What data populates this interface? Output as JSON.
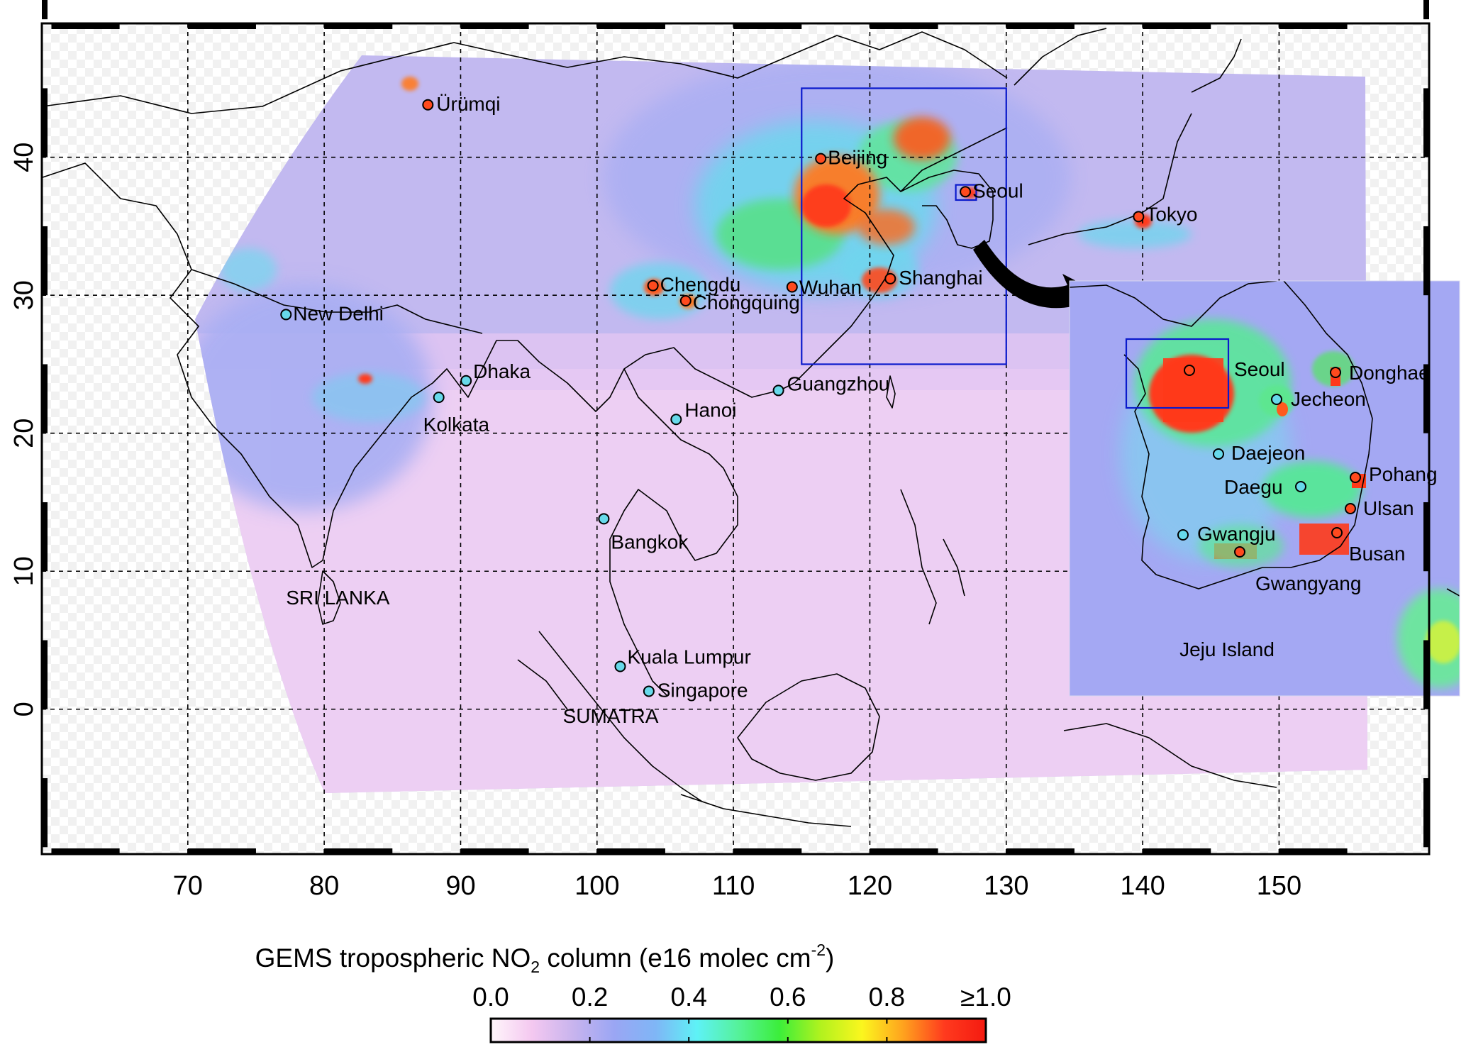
{
  "axes": {
    "x_ticks": [
      "70",
      "80",
      "90",
      "100",
      "110",
      "120",
      "130",
      "140",
      "150"
    ],
    "x_values": [
      70,
      80,
      90,
      100,
      110,
      120,
      130,
      140,
      150
    ],
    "y_ticks": [
      "0",
      "10",
      "20",
      "30",
      "40"
    ],
    "y_values": [
      0,
      10,
      20,
      30,
      40
    ],
    "lon_range": [
      59.3,
      161.0
    ],
    "lat_range": [
      -10.5,
      49.7
    ],
    "grid": "dashed"
  },
  "cities": [
    {
      "name": "Ürümqi",
      "lon": 87.6,
      "lat": 43.8,
      "level": "high"
    },
    {
      "name": "Beijing",
      "lon": 116.4,
      "lat": 39.9,
      "level": "high"
    },
    {
      "name": "Seoul",
      "lon": 127.0,
      "lat": 37.5,
      "level": "high"
    },
    {
      "name": "Tokyo",
      "lon": 139.7,
      "lat": 35.7,
      "level": "high"
    },
    {
      "name": "Shanghai",
      "lon": 121.5,
      "lat": 31.2,
      "level": "high"
    },
    {
      "name": "Chengdu",
      "lon": 104.1,
      "lat": 30.7,
      "level": "high"
    },
    {
      "name": "Chongquing",
      "lon": 106.5,
      "lat": 29.6,
      "level": "high"
    },
    {
      "name": "Wuhan",
      "lon": 114.3,
      "lat": 30.6,
      "level": "high"
    },
    {
      "name": "New Delhi",
      "lon": 77.2,
      "lat": 28.6,
      "level": "low"
    },
    {
      "name": "Dhaka",
      "lon": 90.4,
      "lat": 23.8,
      "level": "low"
    },
    {
      "name": "Kolkata",
      "lon": 88.4,
      "lat": 22.6,
      "level": "low"
    },
    {
      "name": "Hanoi",
      "lon": 105.8,
      "lat": 21.0,
      "level": "low"
    },
    {
      "name": "Guangzhou",
      "lon": 113.3,
      "lat": 23.1,
      "level": "low"
    },
    {
      "name": "Bangkok",
      "lon": 100.5,
      "lat": 13.8,
      "level": "low"
    },
    {
      "name": "Kuala Lumpur",
      "lon": 101.7,
      "lat": 3.1,
      "level": "low"
    },
    {
      "name": "Singapore",
      "lon": 103.8,
      "lat": 1.3,
      "level": "low"
    }
  ],
  "regions": [
    {
      "name": "SRI LANKA",
      "lon": 81.0,
      "lat": 7.6
    },
    {
      "name": "SUMATRA",
      "lon": 101.0,
      "lat": -1.0
    }
  ],
  "china_box": {
    "lon": [
      115,
      130
    ],
    "lat": [
      25,
      45
    ]
  },
  "seoul_box": {
    "lon": [
      126.3,
      127.8
    ],
    "lat": [
      36.9,
      38.0
    ]
  },
  "inset": {
    "cities": [
      "Seoul",
      "Donghae",
      "Jecheon",
      "Daejeon",
      "Daegu",
      "Pohang",
      "Ulsan",
      "Gwangju",
      "Busan",
      "Gwangyang"
    ],
    "region": "Jeju Island"
  },
  "colorbar": {
    "title_main": "GEMS tropospheric NO",
    "title_sub": "2",
    "title_units": " column (e16 molec cm",
    "title_sup": "-2",
    "title_end": ")",
    "tick_labels": [
      "0.0",
      "0.2",
      "0.4",
      "0.6",
      "0.8",
      "≥1.0"
    ],
    "range": [
      0.0,
      1.0
    ],
    "colors": [
      "#fff6fb",
      "#f4c8f0",
      "#c8b4ee",
      "#9aa6f4",
      "#7fb6f6",
      "#5ef2f6",
      "#55f29a",
      "#3cee3a",
      "#b2f21e",
      "#fbf61e",
      "#ffa21e",
      "#ff3a1e",
      "#f41a10"
    ]
  },
  "colors": {
    "low_no2": "#f6d6f2",
    "background_no2": "#b9b3ef",
    "moderate_no2": "#67d9ea",
    "high_no2": "#ff4a1e",
    "box": "#0a1acc"
  }
}
